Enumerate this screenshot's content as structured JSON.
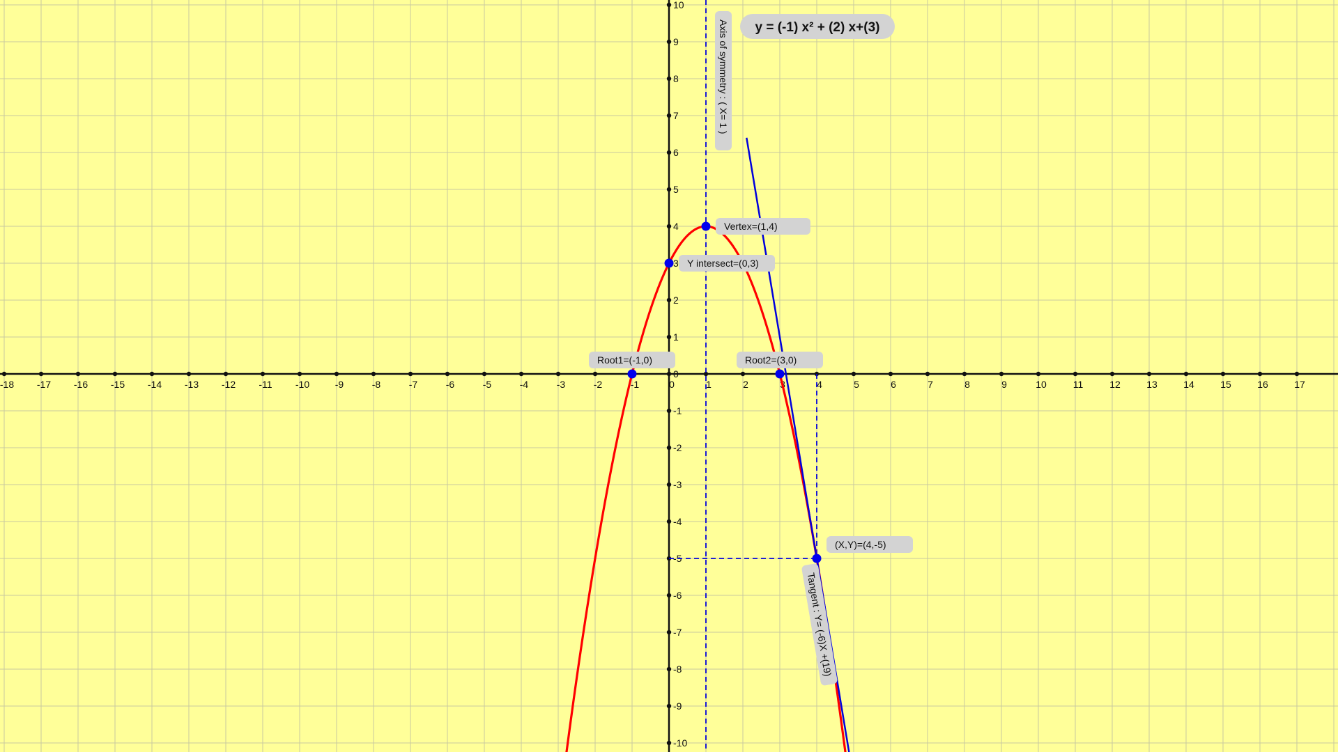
{
  "equation": "y = (-1) x² + (2) x+(3)",
  "colors": {
    "background": "#ffff99",
    "grid": "#c9c9a0",
    "axis": "#111111",
    "curve": "#ff0000",
    "tangent": "#0000dd",
    "guides": "#0000dd",
    "points": "#0000ee",
    "label_bg": "#d3d3d3"
  },
  "chart_data": {
    "type": "line",
    "xlim": [
      -18,
      18
    ],
    "ylim": [
      -10,
      10
    ],
    "grid": true,
    "x_ticks": [
      -18,
      -17,
      -16,
      -15,
      -14,
      -13,
      -12,
      -11,
      -10,
      -9,
      -8,
      -7,
      -6,
      -5,
      -4,
      -3,
      -2,
      -1,
      0,
      1,
      2,
      3,
      4,
      5,
      6,
      7,
      8,
      9,
      10,
      11,
      12,
      13,
      14,
      15,
      16,
      17
    ],
    "y_ticks": [
      10,
      9,
      8,
      7,
      6,
      5,
      4,
      3,
      2,
      1,
      0,
      -1,
      -2,
      -3,
      -4,
      -5,
      -6,
      -7,
      -8,
      -9,
      -10
    ],
    "parabola": {
      "a": -1,
      "b": 2,
      "c": 3
    },
    "axis_of_symmetry": {
      "x": 1,
      "label": "Axis of symmetry : ( X= 1 )"
    },
    "tangent": {
      "slope": -6,
      "intercept": 19,
      "x_range": [
        2.1,
        4.9
      ],
      "label": "Tangent : Y= (-6)X +(19)"
    },
    "points": [
      {
        "name": "vertex",
        "x": 1,
        "y": 4,
        "label": "Vertex=(1,4)"
      },
      {
        "name": "y-intercept",
        "x": 0,
        "y": 3,
        "label": "Y intersect=(0,3)"
      },
      {
        "name": "root1",
        "x": -1,
        "y": 0,
        "label": "Root1=(-1,0)"
      },
      {
        "name": "root2",
        "x": 3,
        "y": 0,
        "label": "Root2=(3,0)"
      },
      {
        "name": "tangent-point",
        "x": 4,
        "y": -5,
        "label": "(X,Y)=(4,-5)"
      }
    ]
  }
}
